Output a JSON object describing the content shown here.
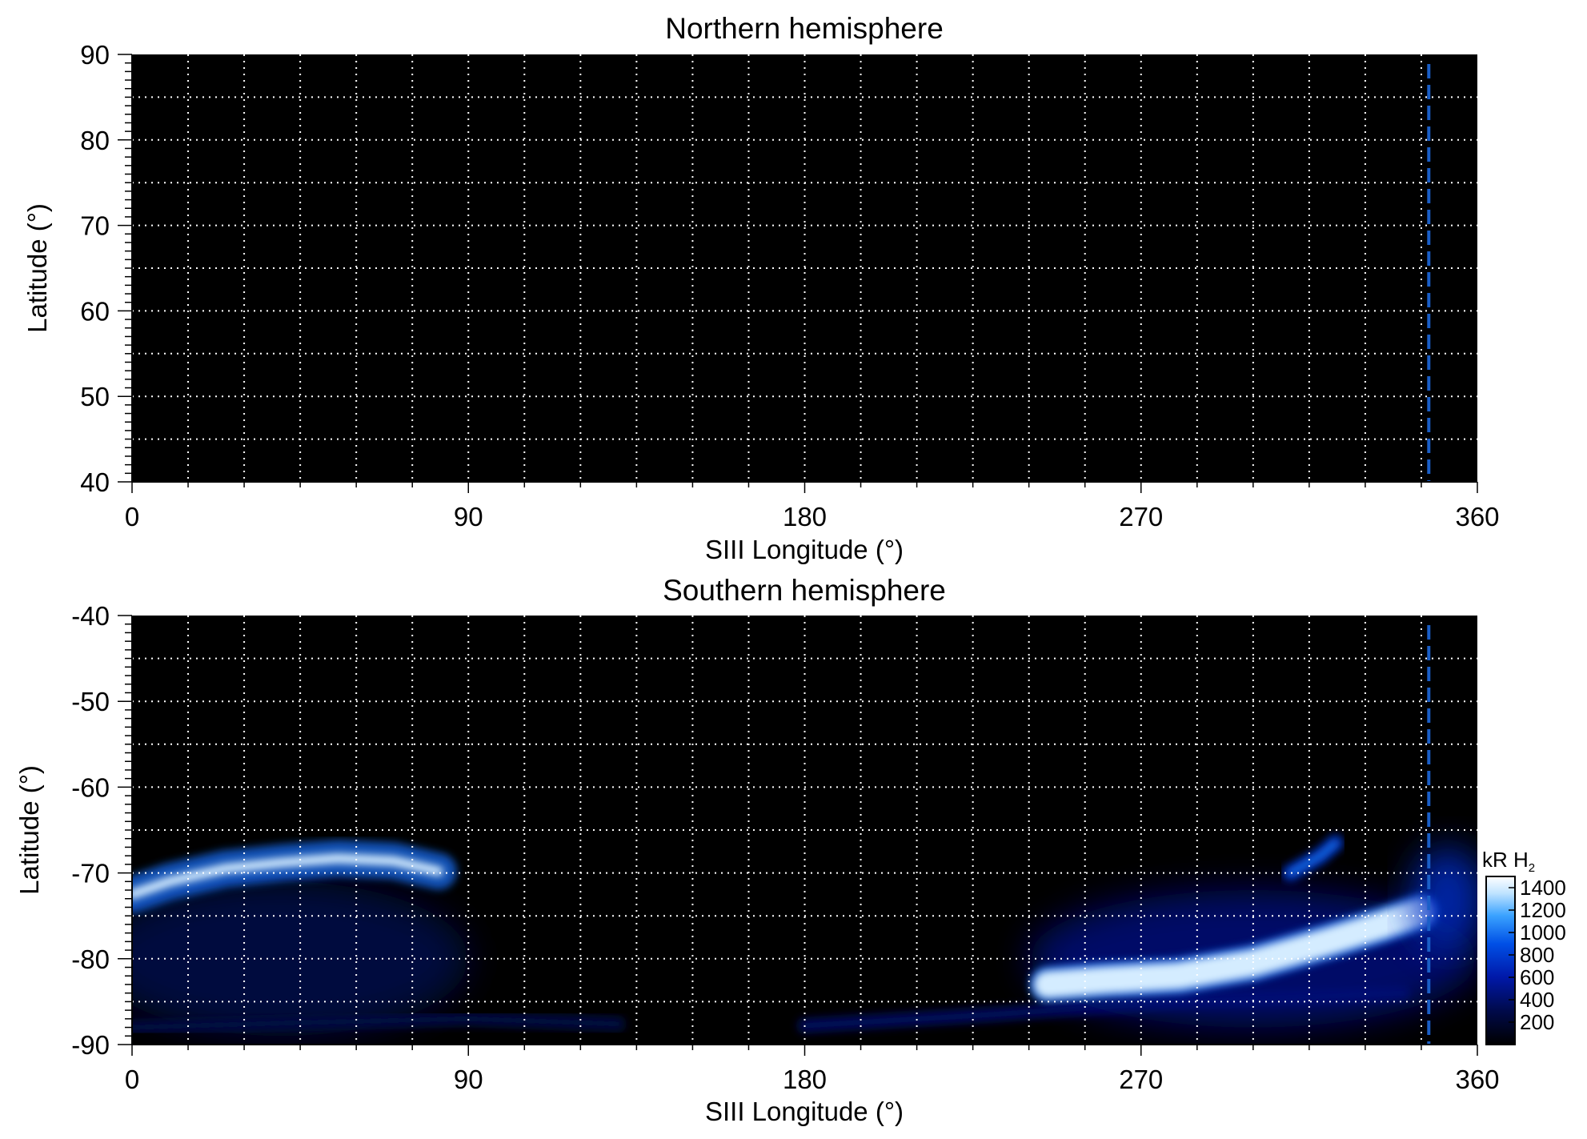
{
  "chart_data": [
    {
      "type": "heatmap",
      "title": "Northern hemisphere",
      "xlabel": "SIII Longitude (°)",
      "ylabel": "Latitude (°)",
      "xlim": [
        0,
        360
      ],
      "ylim": [
        40,
        90
      ],
      "x_ticks": [
        0,
        90,
        180,
        270,
        360
      ],
      "y_ticks": [
        40,
        50,
        60,
        70,
        80,
        90
      ],
      "x_grid": [
        15,
        30,
        45,
        60,
        75,
        90,
        105,
        120,
        135,
        150,
        165,
        180,
        195,
        210,
        225,
        240,
        255,
        270,
        285,
        300,
        315,
        330,
        345
      ],
      "y_grid": [
        45,
        50,
        55,
        60,
        65,
        70,
        75,
        80,
        85
      ],
      "grid": true,
      "marker_longitude": 347,
      "emission_regions": []
    },
    {
      "type": "heatmap",
      "title": "Southern hemisphere",
      "xlabel": "SIII Longitude (°)",
      "ylabel": "Latitude (°)",
      "xlim": [
        0,
        360
      ],
      "ylim": [
        -90,
        -40
      ],
      "x_ticks": [
        0,
        90,
        180,
        270,
        360
      ],
      "y_ticks": [
        -90,
        -80,
        -70,
        -60,
        -50,
        -40
      ],
      "x_grid": [
        15,
        30,
        45,
        60,
        75,
        90,
        105,
        120,
        135,
        150,
        165,
        180,
        195,
        210,
        225,
        240,
        255,
        270,
        285,
        300,
        315,
        330,
        345
      ],
      "y_grid": [
        -85,
        -80,
        -75,
        -70,
        -65,
        -60,
        -55,
        -50,
        -45
      ],
      "grid": true,
      "marker_longitude": 347,
      "emission_regions": [
        {
          "id": "low-lon-diffuse",
          "lon": 40,
          "lat": -80,
          "rlon": 50,
          "rlat": 9,
          "intensity": 300
        },
        {
          "id": "low-lon-arc",
          "points": [
            [
              0,
              -72.5
            ],
            [
              10,
              -71
            ],
            [
              25,
              -69.5
            ],
            [
              40,
              -68.8
            ],
            [
              55,
              -68.3
            ],
            [
              70,
              -68.6
            ],
            [
              82,
              -69.8
            ]
          ],
          "intensity": 1400
        },
        {
          "id": "polar-band-1",
          "points": [
            [
              0,
              -88
            ],
            [
              40,
              -87.5
            ],
            [
              90,
              -87
            ],
            [
              130,
              -87.6
            ]
          ],
          "intensity": 300
        },
        {
          "id": "polar-band-2",
          "points": [
            [
              180,
              -87.8
            ],
            [
              230,
              -86.5
            ],
            [
              280,
              -85
            ],
            [
              340,
              -84
            ]
          ],
          "intensity": 400
        },
        {
          "id": "high-lon-diffuse",
          "lon": 300,
          "lat": -80,
          "rlon": 60,
          "rlat": 8,
          "intensity": 450
        },
        {
          "id": "high-lon-main",
          "points": [
            [
              245,
              -83
            ],
            [
              260,
              -82.5
            ],
            [
              280,
              -82
            ],
            [
              300,
              -80.5
            ],
            [
              320,
              -78
            ],
            [
              335,
              -76
            ],
            [
              345,
              -74.5
            ]
          ],
          "intensity": 1400
        },
        {
          "id": "high-lon-streak",
          "points": [
            [
              310,
              -70
            ],
            [
              318,
              -68
            ],
            [
              322,
              -66.5
            ]
          ],
          "intensity": 1000
        },
        {
          "id": "far-right-patch",
          "lon": 352,
          "lat": -73,
          "rlon": 10,
          "rlat": 6,
          "intensity": 700
        }
      ]
    }
  ],
  "colorbar": {
    "label_main": "kR H",
    "label_sub": "2",
    "range": [
      0,
      1500
    ],
    "ticks": [
      200,
      400,
      600,
      800,
      1000,
      1200,
      1400
    ],
    "stops": [
      {
        "v": 0,
        "c": "#000000"
      },
      {
        "v": 300,
        "c": "#000a4a"
      },
      {
        "v": 600,
        "c": "#0018a8"
      },
      {
        "v": 900,
        "c": "#0050e6"
      },
      {
        "v": 1150,
        "c": "#3aa2ff"
      },
      {
        "v": 1350,
        "c": "#bfe3ff"
      },
      {
        "v": 1500,
        "c": "#ffffff"
      }
    ]
  },
  "colors": {
    "background": "#000000",
    "grid": "#ffffff",
    "marker": "#1a5fc8"
  }
}
